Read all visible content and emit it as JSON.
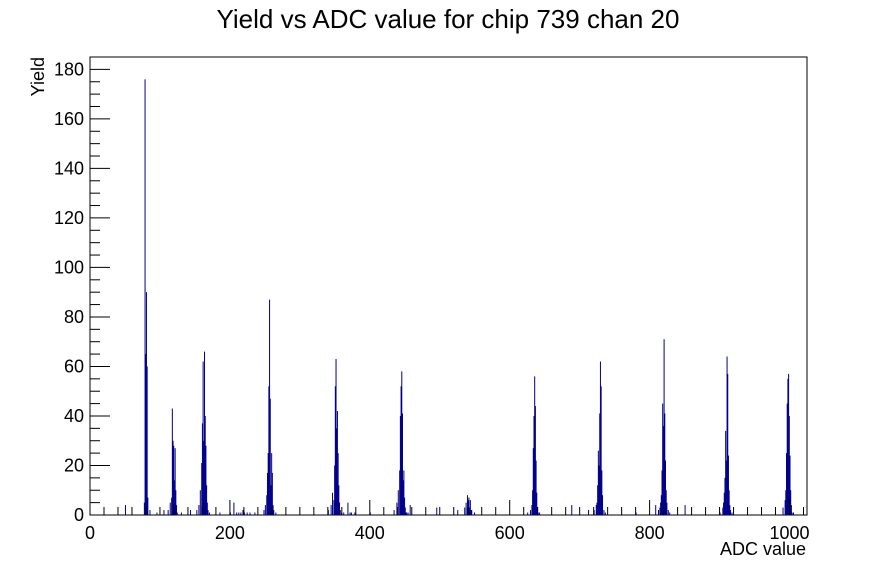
{
  "chart_data": {
    "type": "bar",
    "title": "Yield vs ADC value for chip 739 chan 20",
    "xlabel": "ADC value",
    "ylabel": "Yield",
    "xlim": [
      0,
      1025
    ],
    "ylim": [
      0,
      185
    ],
    "x_ticks": [
      0,
      200,
      400,
      600,
      800,
      1000
    ],
    "y_ticks": [
      0,
      20,
      40,
      60,
      80,
      100,
      120,
      140,
      160,
      180
    ],
    "grid": false,
    "legend": "none",
    "bar_color": "#00008b",
    "series": [
      {
        "x": [
          50,
          77,
          78,
          79,
          80,
          81,
          82,
          85,
          95,
          105,
          111,
          114,
          116,
          117,
          118,
          119,
          120,
          121,
          122,
          123,
          124,
          130,
          143,
          152,
          155,
          157,
          159,
          160,
          161,
          162,
          163,
          164,
          165,
          166,
          167,
          168,
          170,
          185,
          200,
          205,
          209,
          212,
          215,
          218,
          220,
          224,
          228,
          235,
          248,
          250,
          252,
          253,
          254,
          255,
          256,
          257,
          258,
          259,
          260,
          261,
          262,
          265,
          340,
          344,
          346,
          348,
          349,
          350,
          351,
          352,
          353,
          354,
          355,
          356,
          357,
          359,
          362,
          368,
          371,
          373,
          378,
          400,
          434,
          438,
          440,
          442,
          443,
          444,
          445,
          446,
          447,
          448,
          449,
          450,
          451,
          452,
          454,
          457,
          495,
          525,
          535,
          537,
          539,
          540,
          541,
          542,
          543,
          544,
          545,
          549,
          625,
          629,
          631,
          632,
          633,
          634,
          635,
          636,
          637,
          638,
          639,
          640,
          642,
          688,
          712,
          720,
          723,
          724,
          725,
          726,
          727,
          728,
          729,
          730,
          731,
          732,
          734,
          736,
          780,
          808,
          812,
          814,
          815,
          816,
          817,
          818,
          819,
          820,
          821,
          822,
          823,
          824,
          826,
          828,
          850,
          900,
          904,
          905,
          906,
          907,
          908,
          909,
          910,
          911,
          912,
          913,
          914,
          915,
          917,
          990,
          993,
          994,
          995,
          996,
          997,
          998,
          999,
          1000,
          1001,
          1002,
          1003,
          1005
        ],
        "values": [
          4,
          5,
          176,
          65,
          90,
          60,
          7,
          2,
          1,
          2,
          2,
          5,
          7,
          43,
          30,
          28,
          14,
          27,
          10,
          4,
          1,
          1,
          2,
          2,
          4,
          10,
          21,
          37,
          62,
          30,
          66,
          40,
          28,
          12,
          5,
          2,
          1,
          1,
          1,
          5,
          1,
          1,
          1,
          2,
          1,
          1,
          1,
          1,
          2,
          4,
          8,
          17,
          25,
          52,
          87,
          47,
          12,
          25,
          17,
          4,
          2,
          1,
          2,
          4,
          9,
          6,
          20,
          52,
          63,
          35,
          42,
          25,
          12,
          5,
          2,
          1,
          1,
          5,
          1,
          1,
          1,
          1,
          2,
          5,
          10,
          18,
          40,
          52,
          58,
          41,
          14,
          18,
          7,
          3,
          1,
          1,
          1,
          4,
          3,
          2,
          3,
          5,
          8,
          6,
          7,
          3,
          6,
          2,
          2,
          1,
          1,
          2,
          4,
          10,
          27,
          40,
          56,
          44,
          22,
          9,
          3,
          1,
          1,
          4,
          2,
          2,
          4,
          5,
          12,
          26,
          20,
          41,
          62,
          52,
          18,
          8,
          2,
          1,
          1,
          4,
          2,
          3,
          5,
          8,
          18,
          45,
          36,
          71,
          41,
          22,
          10,
          5,
          2,
          1,
          4,
          1,
          3,
          5,
          9,
          15,
          34,
          22,
          64,
          57,
          24,
          10,
          4,
          2,
          1,
          3,
          6,
          10,
          25,
          45,
          55,
          57,
          40,
          24,
          10,
          4,
          1,
          1
        ]
      }
    ]
  }
}
